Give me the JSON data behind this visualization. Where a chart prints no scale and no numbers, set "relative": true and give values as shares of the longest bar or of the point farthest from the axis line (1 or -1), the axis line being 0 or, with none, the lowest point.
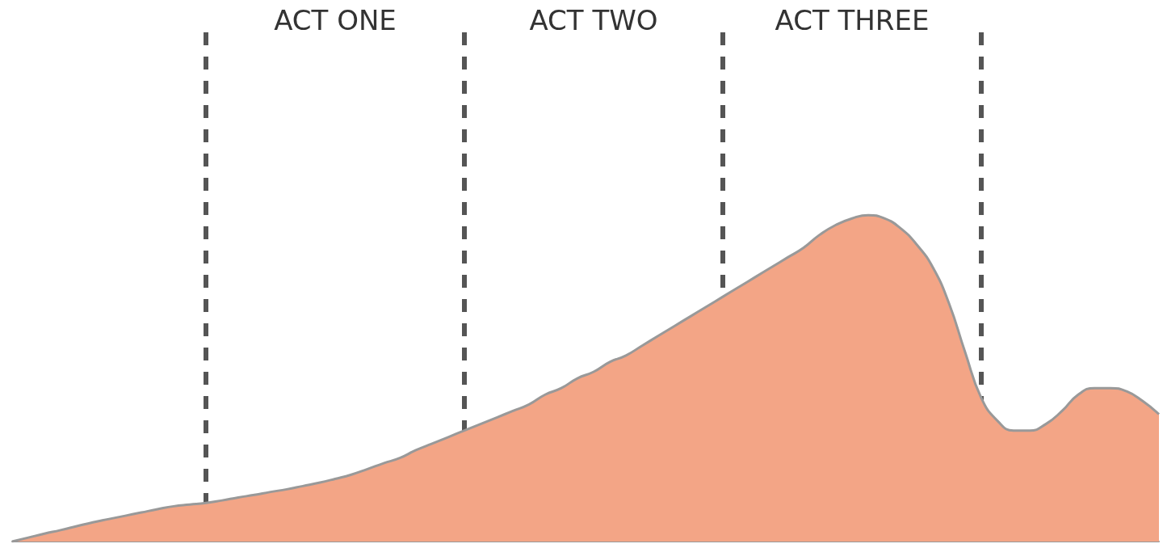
{
  "chart_data": {
    "type": "area",
    "relative": true,
    "categories": [
      null,
      null,
      null,
      null,
      null,
      null,
      null,
      null,
      null,
      null,
      null,
      null,
      null,
      null,
      null,
      null,
      null,
      null,
      null,
      null,
      null,
      null,
      null,
      null,
      null,
      null,
      null,
      null,
      null,
      null,
      null,
      null,
      null,
      null,
      null,
      null,
      null,
      null,
      null,
      null,
      null,
      null,
      null,
      null,
      null,
      null,
      null,
      null,
      null,
      null,
      null,
      null,
      null,
      null,
      null,
      null,
      null,
      null,
      null,
      null,
      null,
      null,
      null,
      null,
      null,
      null,
      null,
      null,
      null,
      null,
      null,
      null
    ],
    "series": [
      {
        "color": "#f3a586",
        "values": [
          0,
          0.012,
          0.024,
          0.035,
          0.047,
          0.059,
          0.069,
          0.079,
          0.089,
          0.099,
          0.108,
          0.113,
          0.118,
          0.126,
          0.135,
          0.143,
          0.152,
          0.16,
          0.17,
          0.18,
          0.192,
          0.205,
          0.222,
          0.24,
          0.256,
          0.28,
          0.3,
          0.32,
          0.34,
          0.36,
          0.38,
          0.4,
          0.42,
          0.45,
          0.47,
          0.5,
          0.52,
          0.55,
          0.57,
          0.6,
          0.63,
          0.66,
          0.69,
          0.72,
          0.75,
          0.78,
          0.81,
          0.84,
          0.87,
          0.9,
          0.94,
          0.97,
          0.99,
          1,
          0.99,
          0.96,
          0.91,
          0.84,
          0.73,
          0.58,
          0.44,
          0.37,
          0.34,
          0.34,
          0.36,
          0.4,
          0.45,
          0.47,
          0.47,
          0.46,
          0.43,
          0.39
        ]
      }
    ],
    "annotations": [
      "ACT ONE",
      "ACT TWO",
      "ACT THREE"
    ],
    "grid": "x"
  }
}
